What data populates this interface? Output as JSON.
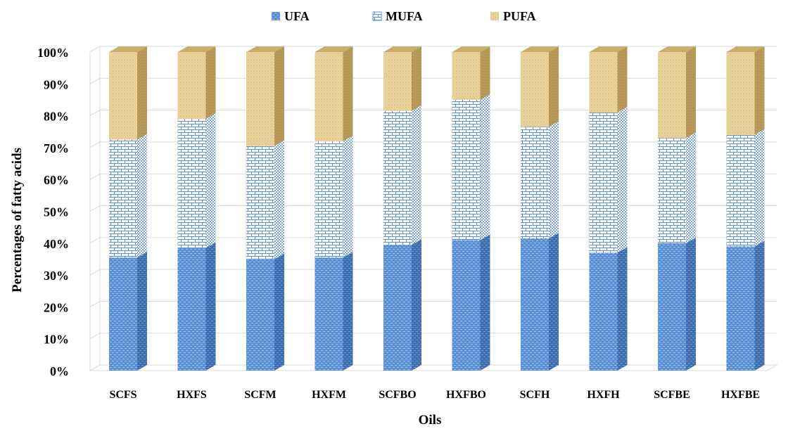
{
  "chart_data": {
    "type": "bar",
    "stacked": true,
    "three_d": true,
    "percent_stacked": true,
    "title": "",
    "xlabel": "Oils",
    "ylabel": "Percentages of fatty acids",
    "ylim": [
      0,
      100
    ],
    "y_ticks": [
      "0%",
      "10%",
      "20%",
      "30%",
      "40%",
      "50%",
      "60%",
      "70%",
      "80%",
      "90%",
      "100%"
    ],
    "categories": [
      "SCFS",
      "HXFS",
      "SCFM",
      "HXFM",
      "SCFBO",
      "HXFBO",
      "SCFH",
      "HXFH",
      "SCFBE",
      "HXFBE"
    ],
    "series": [
      {
        "name": "UFA",
        "values": [
          35.5,
          38.5,
          35,
          35.5,
          39.5,
          41,
          41.5,
          37,
          40,
          39
        ]
      },
      {
        "name": "MUFA",
        "values": [
          37,
          40.5,
          35.5,
          36.5,
          42,
          44,
          35,
          44,
          33,
          35
        ]
      },
      {
        "name": "PUFA",
        "values": [
          27.5,
          21,
          29.5,
          28,
          18.5,
          15,
          23.5,
          19,
          27,
          26
        ]
      }
    ],
    "legend_position": "top",
    "grid": true
  },
  "colors": {
    "ufa_fill": "#5b8fd6",
    "ufa_side": "#3f6fae",
    "mufa_fill": "#ffffff",
    "mufa_line": "#5b8fd6",
    "pufa_fill": "#e8d29a",
    "pufa_side": "#b8995a",
    "grid": "#d9d9d9"
  }
}
